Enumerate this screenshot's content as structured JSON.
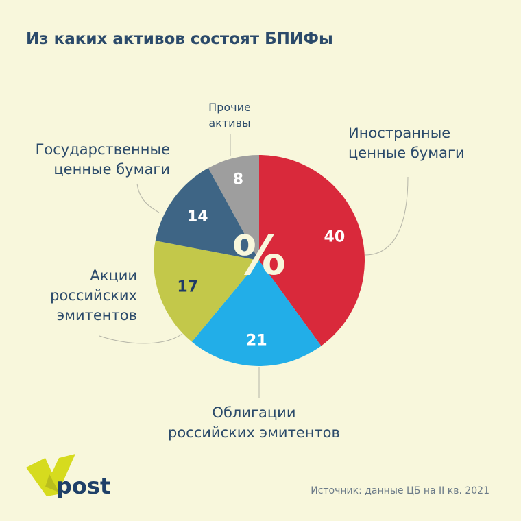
{
  "title": "Из каких активов состоят БПИФы",
  "source": "Источник: данные ЦБ на II кв. 2021",
  "center_symbol": "%",
  "logo_text": "post",
  "chart_data": {
    "type": "pie",
    "title": "Из каких активов состоят БПИФы",
    "unit": "%",
    "start": "12 o'clock, clockwise",
    "slices": [
      {
        "label": "Иностранные ценные бумаги",
        "value": 40,
        "color": "#d9293b",
        "text_color": "#ffffff"
      },
      {
        "label": "Облигации российских эмитентов",
        "value": 21,
        "color": "#22aee8",
        "text_color": "#ffffff"
      },
      {
        "label": "Акции российских эмитентов",
        "value": 17,
        "color": "#c3c84a",
        "text_color": "#1f3a66"
      },
      {
        "label": "Государственные ценные бумаги",
        "value": 14,
        "color": "#3e6585",
        "text_color": "#ffffff"
      },
      {
        "label": "Прочие активы",
        "value": 8,
        "color": "#9e9e9e",
        "text_color": "#ffffff"
      }
    ],
    "labels_display": [
      [
        "Иностранные",
        "ценные бумаги"
      ],
      [
        "Облигации",
        "российских эмитентов"
      ],
      [
        "Акции",
        "российских",
        "эмитентов"
      ],
      [
        "Государственные",
        "ценные бумаги"
      ],
      [
        "Прочие",
        "активы"
      ]
    ]
  }
}
